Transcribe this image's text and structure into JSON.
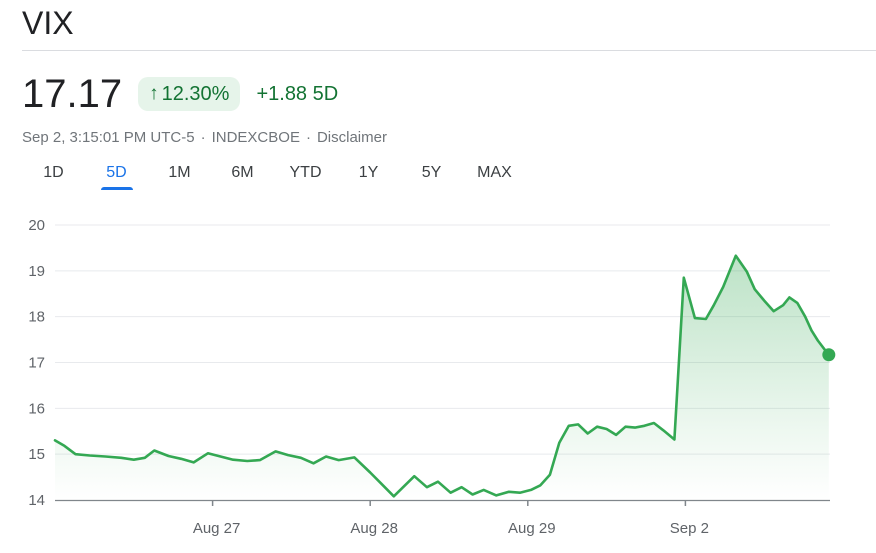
{
  "header": {
    "title": "VIX"
  },
  "quote": {
    "price": "17.17",
    "change_arrow": "↑",
    "change_percent": "12.30%",
    "change_absolute": "+1.88",
    "change_period": "5D",
    "timestamp": "Sep 2, 3:15:01 PM UTC-5",
    "exchange": "INDEXCBOE",
    "disclaimer_label": "Disclaimer",
    "separator": "·"
  },
  "range_tabs": [
    {
      "label": "1D",
      "active": false
    },
    {
      "label": "5D",
      "active": true
    },
    {
      "label": "1M",
      "active": false
    },
    {
      "label": "6M",
      "active": false
    },
    {
      "label": "YTD",
      "active": false
    },
    {
      "label": "1Y",
      "active": false
    },
    {
      "label": "5Y",
      "active": false
    },
    {
      "label": "MAX",
      "active": false
    }
  ],
  "colors": {
    "text_primary": "#202124",
    "text_secondary": "#70757a",
    "accent_blue": "#1a73e8",
    "positive_green_text": "#137333",
    "badge_background": "#e6f4ea",
    "line_green": "#34a853",
    "gridline": "#e8eaed",
    "axis_line": "#80868b",
    "axis_text": "#5f6368"
  },
  "chart_data": {
    "type": "area",
    "title": "VIX 5-day intraday chart",
    "ylabel": "",
    "xlabel": "",
    "ylim": [
      14,
      20
    ],
    "yticks": [
      14,
      15,
      16,
      17,
      18,
      19,
      20
    ],
    "grid": true,
    "legend": false,
    "x_unit": "trading-day index (0 = Aug 26 open, 1 per day)",
    "xticks": [
      {
        "t": 1,
        "label": "Aug 27"
      },
      {
        "t": 2,
        "label": "Aug 28"
      },
      {
        "t": 3,
        "label": "Aug 29"
      },
      {
        "t": 4,
        "label": "Sep 2"
      }
    ],
    "last_value": 17.17,
    "points": [
      [
        0.0,
        15.3
      ],
      [
        0.06,
        15.18
      ],
      [
        0.13,
        15.0
      ],
      [
        0.22,
        14.97
      ],
      [
        0.32,
        14.95
      ],
      [
        0.42,
        14.92
      ],
      [
        0.5,
        14.88
      ],
      [
        0.57,
        14.92
      ],
      [
        0.63,
        15.08
      ],
      [
        0.72,
        14.96
      ],
      [
        0.8,
        14.9
      ],
      [
        0.88,
        14.82
      ],
      [
        0.97,
        15.02
      ],
      [
        1.05,
        14.95
      ],
      [
        1.13,
        14.88
      ],
      [
        1.22,
        14.85
      ],
      [
        1.3,
        14.87
      ],
      [
        1.4,
        15.06
      ],
      [
        1.48,
        14.98
      ],
      [
        1.56,
        14.92
      ],
      [
        1.64,
        14.8
      ],
      [
        1.72,
        14.95
      ],
      [
        1.8,
        14.87
      ],
      [
        1.9,
        14.93
      ],
      [
        2.0,
        14.6
      ],
      [
        2.15,
        14.08
      ],
      [
        2.28,
        14.52
      ],
      [
        2.36,
        14.28
      ],
      [
        2.43,
        14.4
      ],
      [
        2.51,
        14.16
      ],
      [
        2.58,
        14.28
      ],
      [
        2.65,
        14.12
      ],
      [
        2.72,
        14.22
      ],
      [
        2.8,
        14.1
      ],
      [
        2.88,
        14.18
      ],
      [
        2.95,
        14.16
      ],
      [
        3.02,
        14.22
      ],
      [
        3.08,
        14.32
      ],
      [
        3.14,
        14.55
      ],
      [
        3.2,
        15.25
      ],
      [
        3.26,
        15.62
      ],
      [
        3.32,
        15.65
      ],
      [
        3.38,
        15.45
      ],
      [
        3.44,
        15.6
      ],
      [
        3.5,
        15.55
      ],
      [
        3.56,
        15.42
      ],
      [
        3.62,
        15.6
      ],
      [
        3.68,
        15.58
      ],
      [
        3.74,
        15.62
      ],
      [
        3.8,
        15.68
      ],
      [
        3.86,
        15.52
      ],
      [
        3.93,
        15.32
      ],
      [
        3.99,
        18.85
      ],
      [
        4.06,
        17.97
      ],
      [
        4.13,
        17.95
      ],
      [
        4.18,
        18.25
      ],
      [
        4.24,
        18.65
      ],
      [
        4.32,
        19.33
      ],
      [
        4.39,
        18.98
      ],
      [
        4.44,
        18.6
      ],
      [
        4.5,
        18.35
      ],
      [
        4.56,
        18.12
      ],
      [
        4.62,
        18.25
      ],
      [
        4.66,
        18.42
      ],
      [
        4.71,
        18.3
      ],
      [
        4.76,
        18.0
      ],
      [
        4.8,
        17.7
      ],
      [
        4.84,
        17.48
      ],
      [
        4.88,
        17.3
      ],
      [
        4.91,
        17.17
      ]
    ]
  }
}
